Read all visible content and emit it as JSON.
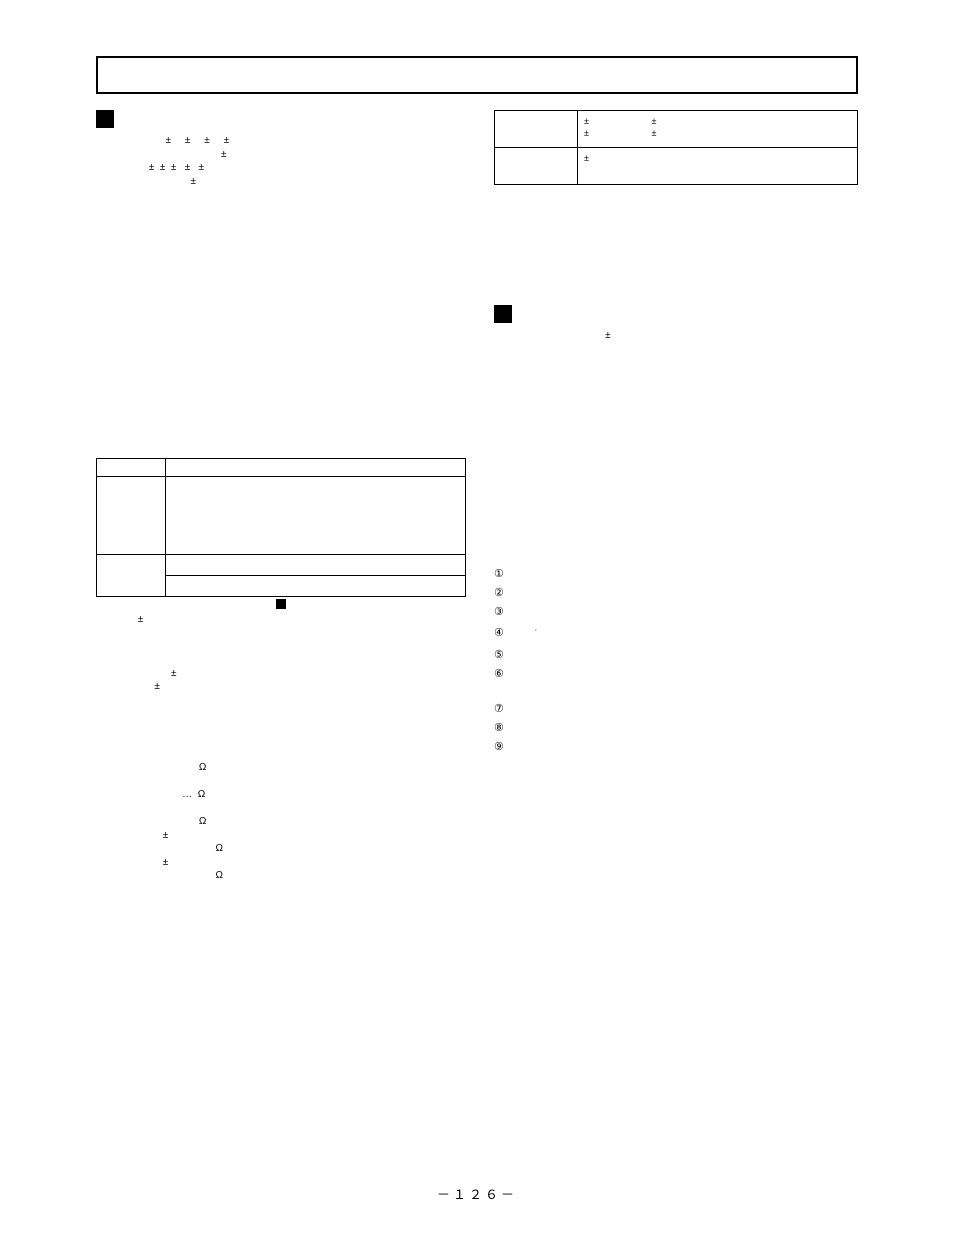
{
  "page_number": "－１２６－",
  "left": {
    "spec_body": "                         ±     ±     ±     ±\n                                             ±\n                   ±  ±  ±   ±   ±\n                                  ±",
    "freq_table": {
      "header_left": "",
      "header_right": "",
      "row1_left": "",
      "row1_right": "",
      "row2_left": "",
      "row2_right_a": "",
      "row2_right_b": ""
    },
    "inline_note_pre": "",
    "inline_note_post": "",
    "lower_block": "               ±\n\n\n\n                           ±\n                     ±\n\n\n\n\n\n                                     Ω\n\n                               …  Ω\n\n                                     Ω\n                        ±\n                                           Ω\n                        ±\n                                           Ω"
  },
  "right": {
    "params_table": {
      "r1c1": "",
      "r1c2": "±                         ±\n±                         ±",
      "r2c1": "",
      "r2c2": "±"
    },
    "sec2_body": "                                        ±",
    "steps": [
      {
        "n": "①",
        "t": ""
      },
      {
        "n": "②",
        "t": ""
      },
      {
        "n": "③",
        "t": "\n"
      },
      {
        "n": "④",
        "t": "      ˙\n"
      },
      {
        "n": "⑤",
        "t": ""
      },
      {
        "n": "⑥",
        "t": "\n\n"
      },
      {
        "n": "⑦",
        "t": ""
      },
      {
        "n": "⑧",
        "t": ""
      },
      {
        "n": "⑨",
        "t": "\n\n\n"
      }
    ]
  }
}
